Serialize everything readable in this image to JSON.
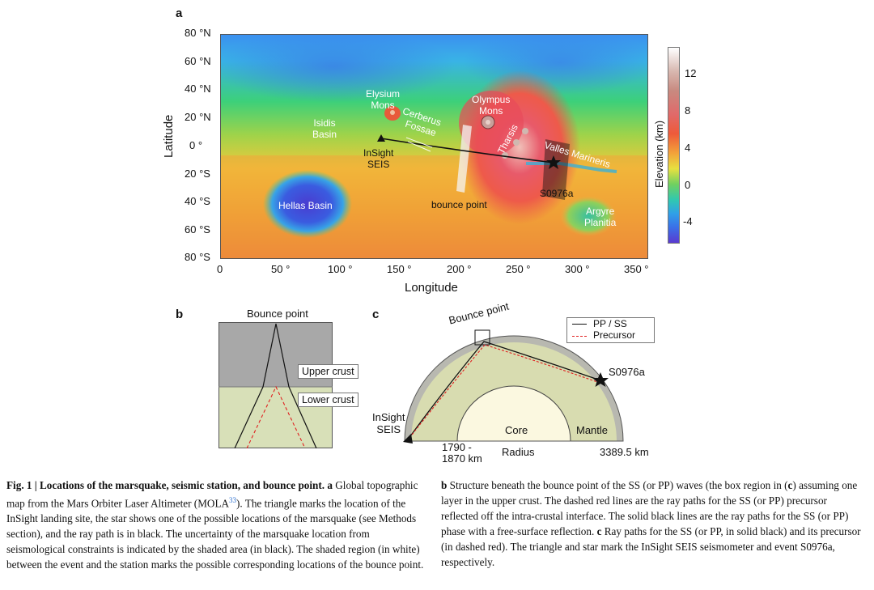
{
  "panel_a": {
    "label": "a",
    "lat_ticks": [
      "80 °N",
      "60 °N",
      "40 °N",
      "20 °N",
      "0 °",
      "-20 °S",
      "-40 °S",
      "-60 °S",
      "-80 °S"
    ],
    "lat_ticks_shown": [
      "80 °N",
      "60 °N",
      "40 °N",
      "20 °N",
      "0 °",
      "20 °S",
      "40 °S",
      "60 °S",
      "80 °S"
    ],
    "lon_ticks": [
      "0",
      "50 °",
      "100 °",
      "150 °",
      "200 °",
      "250 °",
      "300 °",
      "350 °"
    ],
    "xlabel": "Longitude",
    "ylabel": "Latitude",
    "colorbar_ticks": [
      "12",
      "8",
      "4",
      "0",
      "-4"
    ],
    "colorbar_label": "Elevation (km)",
    "features": {
      "elysium": [
        "Elysium",
        "Mons"
      ],
      "cerberus": [
        "Cerberus",
        "Fossae"
      ],
      "olympus": [
        "Olympus",
        "Mons"
      ],
      "isidis": [
        "Isidis",
        "Basin"
      ],
      "tharsis": "Tharsis",
      "valles": "Valles Marineris",
      "insight": [
        "InSight",
        "SEIS"
      ],
      "event": "S0976a",
      "bounce": "bounce point",
      "hellas": "Hellas Basin",
      "argyre": [
        "Argyre",
        "Planitia"
      ]
    }
  },
  "panel_b": {
    "label": "b",
    "title": "Bounce point",
    "upper": "Upper crust",
    "lower": "Lower crust"
  },
  "panel_c": {
    "label": "c",
    "bounce": "Bounce point",
    "legend": [
      "PP / SS",
      "Precursor"
    ],
    "event": "S0976a",
    "station": [
      "InSight",
      "SEIS"
    ],
    "core": "Core",
    "mantle": "Mantle",
    "radius": "Radius",
    "r_core": [
      "1790 -",
      "1870 km"
    ],
    "r_surface": "3389.5 km"
  },
  "caption_left": {
    "head": "Fig. 1 | Locations of the marsquake, seismic station, and bounce point.",
    "a": "a",
    "text_1": " Global topographic map from the Mars Orbiter Laser Altimeter (MOLA",
    "ref": "33",
    "text_2": "). The triangle marks the location of the InSight landing site, the star shows one of the possible locations of the marsquake (see Methods section), and the ray path is in black. The uncertainty of the marsquake location from seismological constraints is indicated by the shaded area (in black). The shaded region (in white) between the event and the station marks the possible corresponding locations of the bounce point."
  },
  "caption_right": {
    "b": "b",
    "text_b": " Structure beneath the bounce point of the SS (or PP) waves (the box region in (",
    "c_ref": "c",
    "text_b2": ") assuming one layer in the upper crust. The dashed red lines are the ray paths for the SS (or PP) precursor reflected off the intra-crustal interface. The solid black lines are the ray paths for the SS (or PP) phase with a free-surface reflection.",
    "c": "c",
    "text_c": " Ray paths for the SS (or PP, in solid black) and its precursor (in dashed red). The triangle and star mark the InSight SEIS seismometer and event S0976a, respectively."
  }
}
